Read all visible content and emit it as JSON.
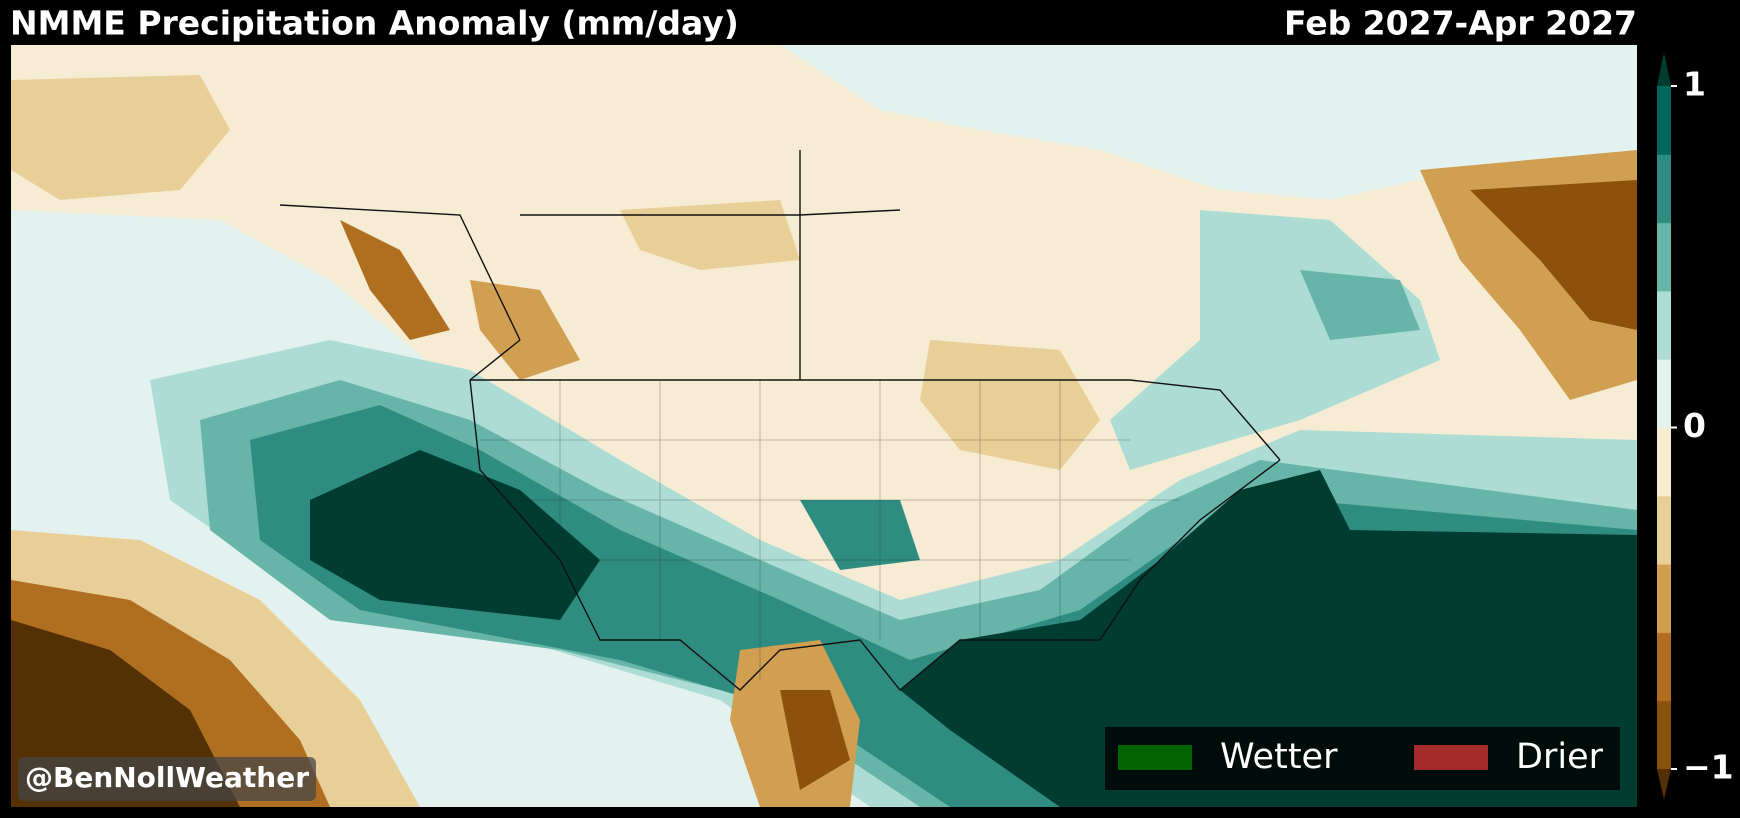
{
  "header": {
    "title": "NMME Precipitation Anomaly (mm/day)",
    "period": "Feb 2027-Apr 2027"
  },
  "colorbar": {
    "lim": [
      -1,
      1
    ],
    "ticks": [
      1,
      0,
      {
        "value": -1,
        "label": "−1"
      }
    ],
    "colors": [
      "#8c510a",
      "#b06f20",
      "#d19f52",
      "#e8cf98",
      "#f6ecd4",
      "#e3f2ef",
      "#acdcd3",
      "#66b5a8",
      "#2e8c81",
      "#01665e"
    ],
    "under": "#543005",
    "over": "#003c30"
  },
  "legend": [
    {
      "label": "Wetter",
      "color": "#006400"
    },
    {
      "label": "Drier",
      "color": "#a52a2a"
    }
  ],
  "watermark": "@BenNollWeather"
}
